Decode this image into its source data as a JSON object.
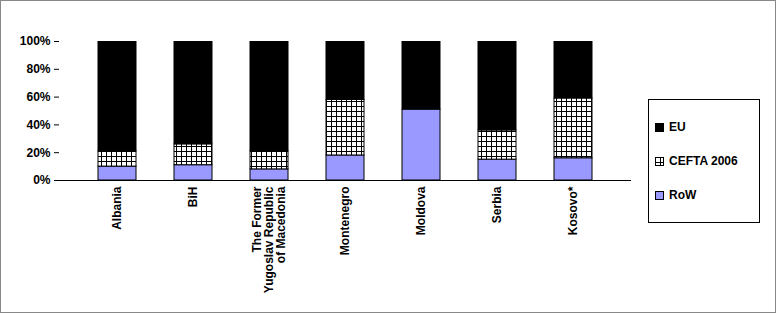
{
  "chart_data": {
    "type": "bar",
    "stacked": true,
    "categories": [
      "Albania",
      "BiH",
      "The Former Yugoslav Republic of Macedonia",
      "Montenegro",
      "Moldova",
      "Serbia",
      "Kosovo*"
    ],
    "series": [
      {
        "name": "RoW",
        "color": "#9999ff",
        "values": [
          10,
          11,
          8,
          18,
          51,
          15,
          16
        ]
      },
      {
        "name": "CEFTA 2006",
        "color": "#ffffff",
        "values": [
          11,
          15,
          13,
          40,
          0,
          21,
          43
        ]
      },
      {
        "name": "EU",
        "color": "#000000",
        "values": [
          79,
          74,
          79,
          42,
          49,
          64,
          41
        ]
      }
    ],
    "ylim": [
      0,
      100
    ],
    "yticks": [
      {
        "value": 0,
        "label": "0%"
      },
      {
        "value": 20,
        "label": "20%"
      },
      {
        "value": 40,
        "label": "40%"
      },
      {
        "value": 60,
        "label": "60%"
      },
      {
        "value": 80,
        "label": "80%"
      },
      {
        "value": 100,
        "label": "100%"
      }
    ],
    "grid": false,
    "legend": "right"
  }
}
